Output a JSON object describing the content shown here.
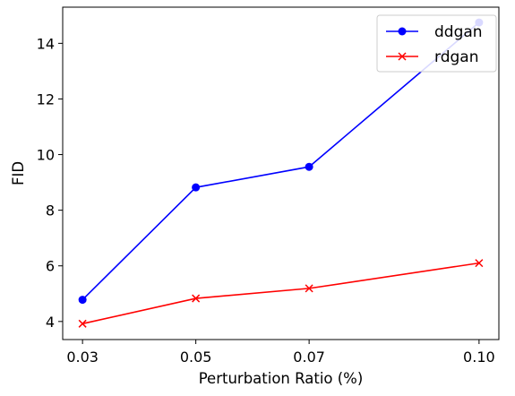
{
  "chart_data": {
    "type": "line",
    "title": "",
    "xlabel": "Perturbation Ratio (%)",
    "ylabel": "FID",
    "x": [
      0.03,
      0.05,
      0.07,
      0.1
    ],
    "x_tick_labels": [
      "0.03",
      "0.05",
      "0.07",
      "0.10"
    ],
    "y_ticks": [
      4,
      6,
      8,
      10,
      12,
      14
    ],
    "xlim": [
      0.0265,
      0.1035
    ],
    "ylim": [
      3.35,
      15.3
    ],
    "grid": false,
    "legend_position": "top-right",
    "series": [
      {
        "name": "ddgan",
        "values": [
          4.78,
          8.82,
          9.56,
          14.75
        ],
        "color": "#0000ff",
        "marker": "circle"
      },
      {
        "name": "rdgan",
        "values": [
          3.92,
          4.83,
          5.19,
          6.1
        ],
        "color": "#ff0000",
        "marker": "x"
      }
    ]
  }
}
